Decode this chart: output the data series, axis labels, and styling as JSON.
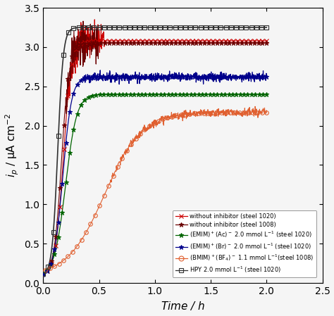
{
  "xlabel": "Time / h",
  "ylabel": "i_p",
  "xlim": [
    0,
    2.5
  ],
  "ylim": [
    0,
    3.5
  ],
  "xticks": [
    0.0,
    0.5,
    1.0,
    1.5,
    2.0,
    2.5
  ],
  "yticks": [
    0.0,
    0.5,
    1.0,
    1.5,
    2.0,
    2.5,
    3.0,
    3.5
  ],
  "bg_color": "#f0f0f0",
  "series": [
    {
      "label": "without inhibitor (steel 1020)",
      "color": "#cc0000",
      "marker": "x",
      "markersize": 4,
      "plateau": 3.08,
      "k": 28.0,
      "t0": 0.18,
      "start_val": 0.1,
      "noise_amp": 0.12,
      "noise_tmin": 0.22,
      "noise_tmax": 0.55,
      "n_markers": 55,
      "marker_start": 0.0,
      "lw": 0.8
    },
    {
      "label": "without inhibitor (steel 1008)",
      "color": "#6b0000",
      "marker": "*",
      "markersize": 5,
      "plateau": 3.05,
      "k": 30.0,
      "t0": 0.165,
      "start_val": 0.1,
      "noise_amp": 0.14,
      "noise_tmin": 0.2,
      "noise_tmax": 0.5,
      "n_markers": 55,
      "marker_start": 0.0,
      "lw": 0.8
    },
    {
      "label": "(EMIM)+(Ac)- 2.0 mmol L-1 (steel 1020)",
      "color": "#006400",
      "marker": "*",
      "markersize": 5,
      "plateau": 2.4,
      "k": 20.0,
      "t0": 0.2,
      "start_val": 0.08,
      "noise_amp": 0.0,
      "noise_tmin": 0.0,
      "noise_tmax": 0.0,
      "n_markers": 60,
      "marker_start": 0.0,
      "lw": 0.9
    },
    {
      "label": "(EMIM)+(Br)- 2.0 mmol L-1 (steel 1020)",
      "color": "#00008b",
      "marker": "*",
      "markersize": 5,
      "plateau": 2.62,
      "k": 25.0,
      "t0": 0.175,
      "start_val": 0.08,
      "noise_amp": 0.03,
      "noise_tmin": 0.35,
      "noise_tmax": 2.01,
      "n_markers": 60,
      "marker_start": 0.0,
      "lw": 0.9
    },
    {
      "label": "(BMIM)+(BF4)- 1.1 mmol L-1 (steel 1008)",
      "color": "#e06030",
      "marker": "o",
      "markersize": 4,
      "plateau": 2.17,
      "k": 6.0,
      "t0": 0.55,
      "start_val": 0.08,
      "noise_amp": 0.025,
      "noise_tmin": 0.6,
      "noise_tmax": 2.01,
      "n_markers": 50,
      "marker_start": 0.02,
      "lw": 0.8
    },
    {
      "label": "HPY 2.0 mmol L-1 (steel 1020)",
      "color": "#303030",
      "marker": "s",
      "markersize": 4,
      "plateau": 3.25,
      "k": 40.0,
      "t0": 0.13,
      "start_val": 0.1,
      "noise_amp": 0.0,
      "noise_tmin": 0.0,
      "noise_tmax": 0.0,
      "n_markers": 45,
      "marker_start": 0.0,
      "lw": 1.2
    }
  ],
  "legend_labels": [
    "without inhibitor (steel 1020)",
    "without inhibitor (steel 1008)",
    "(EMIM)$^+$(Ac)$^-$ 2.0 mmol L$^{-1}$ (steel 1020)",
    "(EMIM)$^+$(Br)$^-$ 2.0 mmol L$^{-1}$ (steel 1020)",
    "(BMIM)$^+$(BF$_4$)$^-$ 1.1 mmol L$^{-1}$(steel 1008)",
    "HPY 2.0 mmol L$^{-1}$ (steel 1020)"
  ],
  "legend_markers": [
    "x",
    "*",
    "*",
    "*",
    "o",
    "s"
  ],
  "legend_mfc": [
    "#cc0000",
    "#6b0000",
    "#006400",
    "#00008b",
    "none",
    "none"
  ],
  "legend_colors": [
    "#cc0000",
    "#6b0000",
    "#006400",
    "#00008b",
    "#e06030",
    "#303030"
  ]
}
